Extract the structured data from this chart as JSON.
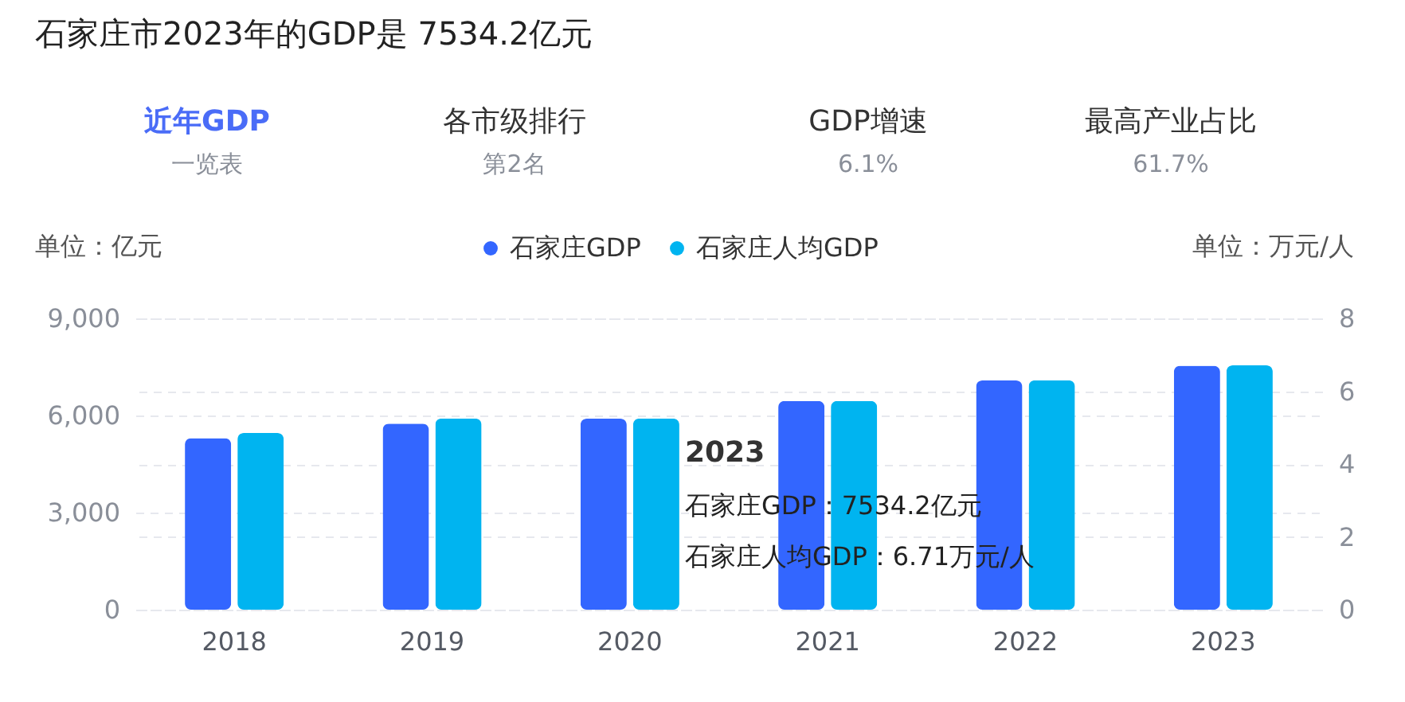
{
  "chart_data": {
    "type": "bar",
    "title": "石家庄市2023年的GDP是 7534.2亿元",
    "ylabel": "单位：亿元",
    "y2label": "单位：万元/人",
    "categories": [
      "2018",
      "2019",
      "2020",
      "2021",
      "2022",
      "2023"
    ],
    "series": [
      {
        "name": "石家庄GDP",
        "color": "#3366ff",
        "values": [
          5300,
          5750,
          5900,
          6450,
          7080,
          7534.2
        ]
      },
      {
        "name": "石家庄人均GDP",
        "color": "#00b4f0",
        "axis": "y2",
        "values": [
          4.85,
          5.25,
          5.25,
          5.73,
          6.3,
          6.71
        ]
      }
    ],
    "ylim": [
      0,
      9000
    ],
    "yticks": [
      {
        "value": 0,
        "label": "0"
      },
      {
        "value": 3000,
        "label": "3,000"
      },
      {
        "value": 6000,
        "label": "6,000"
      },
      {
        "value": 9000,
        "label": "9,000"
      }
    ],
    "y2lim": [
      0,
      8
    ],
    "y2ticks": [
      0,
      2,
      4,
      6,
      8
    ],
    "grid": true,
    "legend": "top",
    "annotations": [
      "近年GDP",
      "一览表",
      "各市级排行",
      "第2名",
      "GDP增速",
      "6.1%",
      "最高产业占比",
      "61.7%",
      "2023",
      "石家庄GDP：7534.2亿元",
      "石家庄人均GDP：6.71万元/人"
    ]
  }
}
